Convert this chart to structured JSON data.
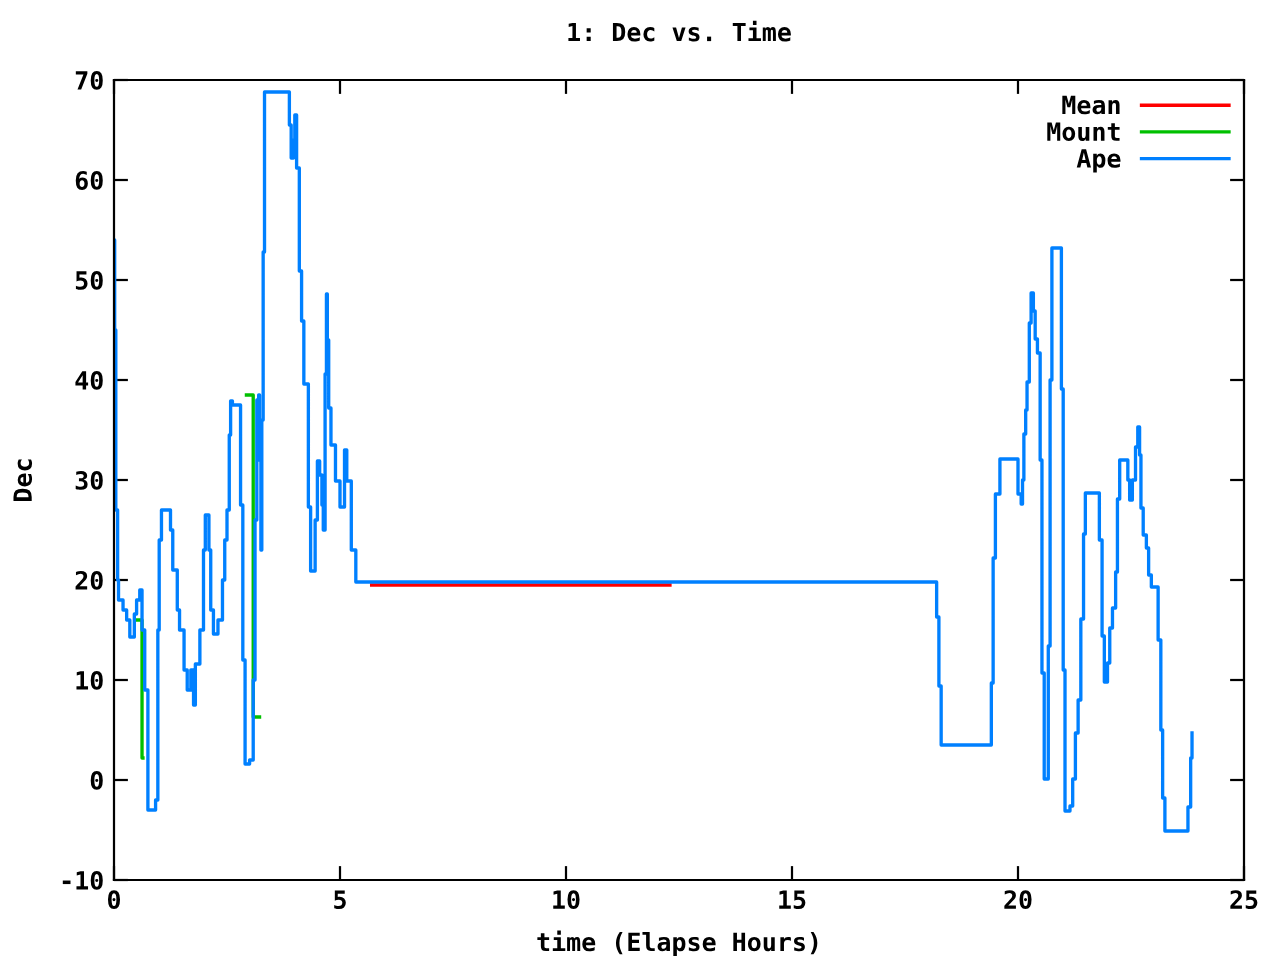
{
  "chart_data": {
    "type": "step",
    "title": "1: Dec vs. Time",
    "xlabel": "time (Elapse Hours)",
    "ylabel": "Dec",
    "xlim": [
      0,
      25
    ],
    "xticks": [
      0,
      5,
      10,
      15,
      20,
      25
    ],
    "ylim": [
      -10,
      70
    ],
    "yticks": [
      -10,
      0,
      10,
      20,
      30,
      40,
      50,
      60,
      70
    ],
    "grid": false,
    "legend": "top right",
    "marker": "none",
    "line_style": "solid",
    "x": [
      0,
      0.015,
      0.04,
      0.08,
      0.1,
      0.2,
      0.28,
      0.35,
      0.45,
      0.5,
      0.57,
      0.62,
      0.68,
      0.75,
      0.87,
      0.92,
      0.97,
      1.0,
      1.05,
      1.2,
      1.25,
      1.3,
      1.4,
      1.45,
      1.55,
      1.62,
      1.7,
      1.76,
      1.8,
      1.9,
      1.98,
      2.02,
      2.1,
      2.14,
      2.2,
      2.3,
      2.4,
      2.45,
      2.5,
      2.55,
      2.58,
      2.62,
      2.8,
      2.85,
      2.9,
      3.0,
      3.08,
      3.12,
      3.16,
      3.2,
      3.22,
      3.25,
      3.27,
      3.3,
      3.33,
      3.85,
      3.88,
      3.92,
      3.97,
      4.0,
      4.04,
      4.1,
      4.15,
      4.2,
      4.3,
      4.35,
      4.45,
      4.5,
      4.55,
      4.6,
      4.63,
      4.67,
      4.7,
      4.72,
      4.75,
      4.8,
      4.9,
      5.0,
      5.1,
      5.15,
      5.25,
      5.35,
      5.7,
      12.3,
      18.2,
      18.25,
      18.3,
      19.41,
      19.45,
      19.5,
      19.6,
      20.0,
      20.07,
      20.1,
      20.13,
      20.17,
      20.2,
      20.25,
      20.29,
      20.34,
      20.38,
      20.43,
      20.49,
      20.53,
      20.58,
      20.67,
      20.71,
      20.75,
      20.96,
      21.0,
      21.04,
      21.15,
      21.21,
      21.27,
      21.33,
      21.39,
      21.45,
      21.49,
      21.8,
      21.86,
      21.91,
      21.98,
      22.03,
      22.09,
      22.16,
      22.2,
      22.25,
      22.43,
      22.47,
      22.53,
      22.6,
      22.65,
      22.69,
      22.72,
      22.77,
      22.84,
      22.89,
      22.95,
      23.1,
      23.16,
      23.2,
      23.25,
      23.76,
      23.82,
      23.85
    ],
    "series": [
      {
        "name": "Mean",
        "color": "#ff0000",
        "x": [
          5.7,
          12.3
        ],
        "values": [
          19.5,
          19.5
        ]
      },
      {
        "name": "Mount",
        "color": "#00c000",
        "x": [
          0.5,
          0.62,
          0.64,
          2.93,
          3.08,
          3.22
        ],
        "values": [
          16,
          2.2,
          null,
          38.5,
          6.3,
          6.3
        ]
      },
      {
        "name": "Ape",
        "color": "#0080ff",
        "values": [
          54,
          45,
          27,
          20,
          18,
          17,
          16,
          14.3,
          16.6,
          18,
          19,
          15,
          9,
          -3,
          -3,
          -2,
          15,
          24,
          27,
          27,
          25,
          21,
          17,
          15,
          11,
          9,
          11,
          7.5,
          11.6,
          15,
          23,
          26.5,
          23,
          17,
          14.6,
          16,
          20,
          24,
          27,
          34.5,
          37.9,
          37.5,
          27.5,
          12,
          1.6,
          2,
          10,
          26,
          38,
          38.5,
          32,
          23,
          36,
          52.8,
          68.8,
          68.8,
          65.5,
          62.2,
          64,
          66.5,
          61.2,
          50.9,
          45.9,
          39.6,
          27.3,
          20.9,
          26,
          31.9,
          30.5,
          27.5,
          25,
          40.6,
          48.6,
          44,
          37.2,
          33.5,
          29.9,
          27.3,
          33,
          29.9,
          23,
          19.8,
          19.8,
          19.8,
          16.3,
          9.4,
          3.5,
          9.7,
          22.2,
          28.6,
          32.1,
          28.6,
          27.6,
          30,
          34.6,
          37,
          39.8,
          45.7,
          48.7,
          46.9,
          44.1,
          42.7,
          32,
          10.7,
          0.1,
          13.4,
          40,
          53.2,
          39.1,
          11,
          -3.1,
          -2.6,
          0.1,
          4.7,
          8,
          16.1,
          24.6,
          28.7,
          24,
          14.4,
          9.8,
          11.7,
          15.2,
          17.2,
          20.8,
          28.1,
          32,
          30,
          28,
          30,
          33.3,
          35.3,
          32.5,
          27.2,
          24.5,
          23.2,
          20.5,
          19.3,
          14,
          5,
          -1.8,
          -5.1,
          -2.7,
          2.2,
          4.7
        ]
      }
    ]
  }
}
